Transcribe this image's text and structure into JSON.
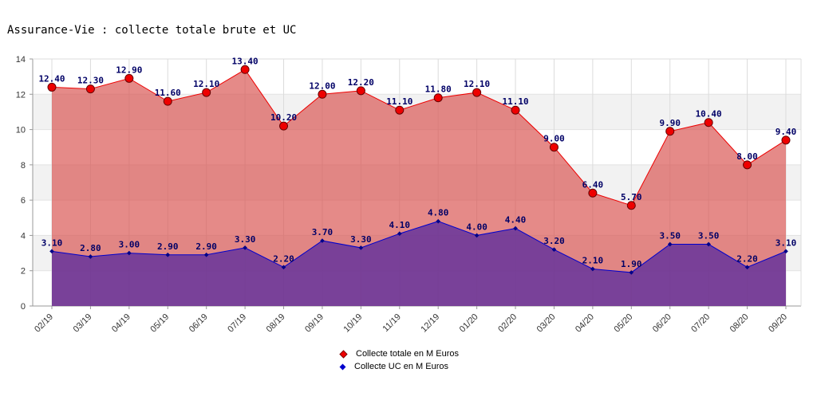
{
  "chart_data": {
    "type": "area",
    "title": "Assurance-Vie : collecte totale brute et UC",
    "xlabel": "",
    "ylabel": "",
    "ylim": [
      0,
      14
    ],
    "yticks": [
      0,
      2,
      4,
      6,
      8,
      10,
      12,
      14
    ],
    "grid": true,
    "legend_position": "bottom-center",
    "categories": [
      "02/19",
      "03/19",
      "04/19",
      "05/19",
      "06/19",
      "07/19",
      "08/19",
      "09/19",
      "10/19",
      "11/19",
      "12/19",
      "01/20",
      "02/20",
      "03/20",
      "04/20",
      "05/20",
      "06/20",
      "07/20",
      "08/20",
      "09/20"
    ],
    "series": [
      {
        "name": "Collecte totale en M Euros",
        "color": "#ee0000",
        "fill": "#d9534f",
        "values": [
          12.4,
          12.3,
          12.9,
          11.6,
          12.1,
          13.4,
          10.2,
          12.0,
          12.2,
          11.1,
          11.8,
          12.1,
          11.1,
          9.0,
          6.4,
          5.7,
          9.9,
          10.4,
          8.0,
          9.4
        ],
        "labels": [
          "12.40",
          "12.30",
          "12.90",
          "11.60",
          "12.10",
          "13.40",
          "10.20",
          "12.00",
          "12.20",
          "11.10",
          "11.80",
          "12.10",
          "11.10",
          "9.00",
          "6.40",
          "5.70",
          "9.90",
          "10.40",
          "8.00",
          "9.40"
        ]
      },
      {
        "name": "Collecte UC en M Euros",
        "color": "#0000cc",
        "fill": "#5b2d9e",
        "values": [
          3.1,
          2.8,
          3.0,
          2.9,
          2.9,
          3.3,
          2.2,
          3.7,
          3.3,
          4.1,
          4.8,
          4.0,
          4.4,
          3.2,
          2.1,
          1.9,
          3.5,
          3.5,
          2.2,
          3.1
        ],
        "labels": [
          "3.10",
          "2.80",
          "3.00",
          "2.90",
          "2.90",
          "3.30",
          "2.20",
          "3.70",
          "3.30",
          "4.10",
          "4.80",
          "4.00",
          "4.40",
          "3.20",
          "2.10",
          "1.90",
          "3.50",
          "3.50",
          "2.20",
          "3.10"
        ]
      }
    ]
  }
}
